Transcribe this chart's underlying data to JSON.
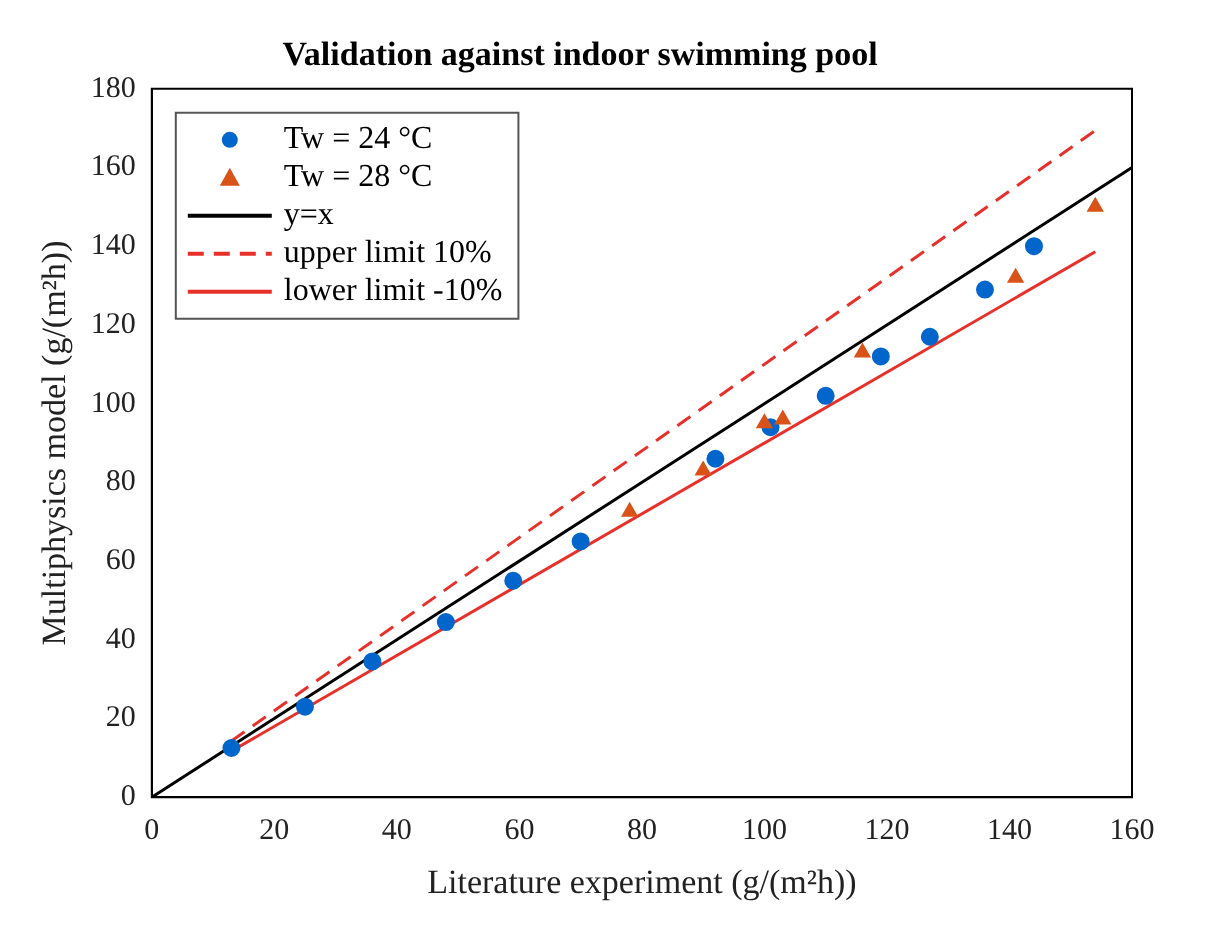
{
  "chart_data": {
    "type": "scatter",
    "title": "Validation against indoor swimming pool",
    "xlabel": "Literature experiment (g/(m²h))",
    "ylabel": "Multiphysics model (g/(m²h))",
    "xlim": [
      0,
      160
    ],
    "xticks": [
      0,
      20,
      40,
      60,
      80,
      100,
      120,
      140,
      160
    ],
    "ylim": [
      0,
      180
    ],
    "yticks": [
      0,
      20,
      40,
      60,
      80,
      100,
      120,
      140,
      160,
      180
    ],
    "grid": false,
    "legend": "top left",
    "series": [
      {
        "name": "Tw = 24 °C",
        "type": "scatter",
        "marker": "circle",
        "color": "#0066cc",
        "x": [
          13,
          25,
          36,
          48,
          59,
          70,
          92,
          101,
          110,
          119,
          127,
          136,
          144
        ],
        "values": [
          12.5,
          23,
          34.5,
          44.5,
          55,
          65,
          86,
          94,
          102,
          112,
          117,
          129,
          140
        ]
      },
      {
        "name": "Tw = 28 °C",
        "type": "scatter",
        "marker": "triangle",
        "color": "#d95319",
        "x": [
          78,
          90,
          100,
          103,
          116,
          141,
          154
        ],
        "values": [
          72.5,
          83,
          95,
          96,
          113,
          132,
          150
        ]
      },
      {
        "name": "y=x",
        "type": "line",
        "marker": "none",
        "line_style": "solid",
        "color": "#000000",
        "x": [
          0,
          160
        ],
        "values": [
          0,
          160
        ]
      },
      {
        "name": "upper limit 10%",
        "type": "line",
        "marker": "none",
        "line_style": "dashed",
        "color": "#e8302a",
        "x": [
          13,
          154
        ],
        "values": [
          14.3,
          169.4
        ]
      },
      {
        "name": "lower limit -10%",
        "type": "line",
        "marker": "none",
        "line_style": "solid",
        "color": "#e8302a",
        "x": [
          13,
          154
        ],
        "values": [
          11.7,
          138.6
        ]
      }
    ]
  }
}
